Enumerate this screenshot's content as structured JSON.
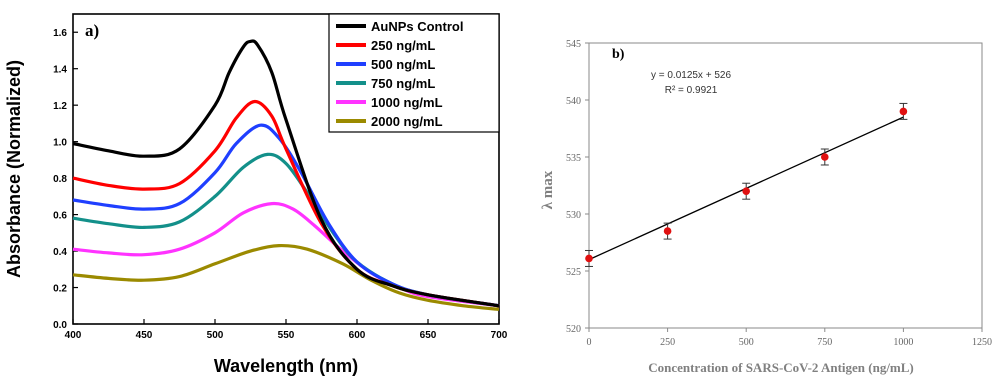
{
  "chart_data": [
    {
      "type": "line",
      "panel_label": "a)",
      "xlabel": "Wavelength (nm)",
      "ylabel": "Absorbance (Normalized)",
      "xlim": [
        400,
        700
      ],
      "ylim": [
        0,
        1.7
      ],
      "xticks": [
        400,
        450,
        500,
        550,
        600,
        650,
        700
      ],
      "yticks": [
        0.0,
        0.2,
        0.4,
        0.6,
        0.8,
        1.0,
        1.2,
        1.4,
        1.6
      ],
      "legend_position": "top-right",
      "series": [
        {
          "name": "AuNPs Control",
          "color": "#000000",
          "x": [
            400,
            425,
            450,
            475,
            500,
            510,
            520,
            525,
            530,
            540,
            550,
            575,
            600,
            625,
            650,
            700
          ],
          "y": [
            0.99,
            0.95,
            0.92,
            0.96,
            1.2,
            1.38,
            1.52,
            1.55,
            1.53,
            1.38,
            1.12,
            0.57,
            0.3,
            0.21,
            0.16,
            0.1
          ]
        },
        {
          "name": "250 ng/mL",
          "color": "#ff0000",
          "x": [
            400,
            425,
            450,
            475,
            500,
            515,
            528,
            540,
            550,
            575,
            600,
            625,
            650,
            700
          ],
          "y": [
            0.8,
            0.76,
            0.74,
            0.77,
            0.95,
            1.13,
            1.22,
            1.14,
            0.96,
            0.55,
            0.3,
            0.21,
            0.16,
            0.1
          ]
        },
        {
          "name": "500 ng/mL",
          "color": "#1f3fff",
          "x": [
            400,
            425,
            450,
            475,
            500,
            515,
            532,
            545,
            560,
            580,
            600,
            625,
            650,
            700
          ],
          "y": [
            0.68,
            0.65,
            0.63,
            0.66,
            0.83,
            0.99,
            1.09,
            1.02,
            0.84,
            0.55,
            0.34,
            0.22,
            0.16,
            0.1
          ]
        },
        {
          "name": "750 ng/mL",
          "color": "#13908a",
          "x": [
            400,
            425,
            450,
            475,
            500,
            520,
            537,
            550,
            565,
            585,
            600,
            625,
            650,
            700
          ],
          "y": [
            0.58,
            0.55,
            0.53,
            0.56,
            0.7,
            0.86,
            0.93,
            0.88,
            0.72,
            0.48,
            0.34,
            0.22,
            0.16,
            0.1
          ]
        },
        {
          "name": "1000 ng/mL",
          "color": "#ff33ff",
          "x": [
            400,
            425,
            450,
            475,
            500,
            520,
            540,
            555,
            570,
            590,
            610,
            630,
            650,
            700
          ],
          "y": [
            0.41,
            0.39,
            0.38,
            0.41,
            0.5,
            0.61,
            0.66,
            0.63,
            0.54,
            0.4,
            0.28,
            0.2,
            0.15,
            0.1
          ]
        },
        {
          "name": "2000 ng/mL",
          "color": "#9b8a00",
          "x": [
            400,
            425,
            450,
            475,
            500,
            525,
            545,
            565,
            590,
            610,
            630,
            650,
            675,
            700
          ],
          "y": [
            0.27,
            0.25,
            0.24,
            0.26,
            0.33,
            0.4,
            0.43,
            0.41,
            0.33,
            0.24,
            0.17,
            0.13,
            0.1,
            0.08
          ]
        }
      ]
    },
    {
      "type": "scatter",
      "panel_label": "b)",
      "xlabel": "Concentration of SARS-CoV-2 Antigen (ng/mL)",
      "ylabel": "λ max",
      "xlim": [
        0,
        1250
      ],
      "ylim": [
        520,
        545
      ],
      "xticks": [
        0,
        250,
        500,
        750,
        1000,
        1250
      ],
      "yticks": [
        520,
        525,
        530,
        535,
        540,
        545
      ],
      "equation": "y = 0.0125x + 526",
      "r_squared": "R² = 0.9921",
      "fit": {
        "slope": 0.0125,
        "intercept": 526,
        "x_range": [
          0,
          1000
        ],
        "color": "#000000"
      },
      "points": {
        "color": "#e01010",
        "x": [
          0,
          250,
          500,
          750,
          1000
        ],
        "y": [
          526.1,
          528.5,
          532.0,
          535.0,
          539.0
        ],
        "error": [
          0.7,
          0.7,
          0.7,
          0.7,
          0.7
        ]
      }
    }
  ]
}
